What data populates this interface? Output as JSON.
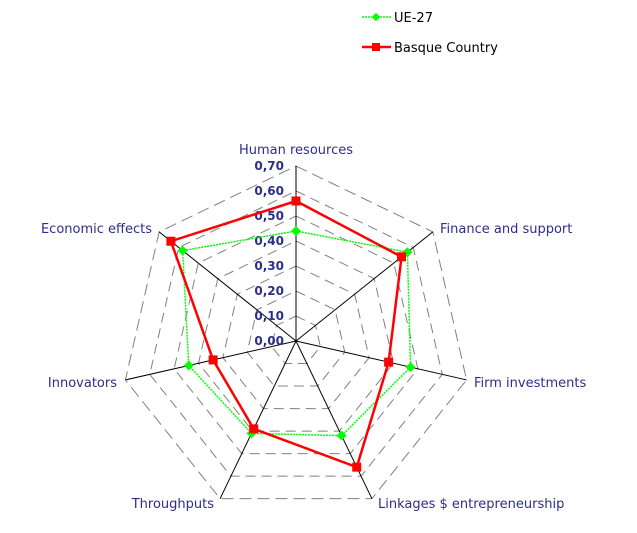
{
  "chart_data": {
    "type": "radar",
    "title": "",
    "categories": [
      "Human resources",
      "Finance and support",
      "Firm investments",
      "Linkages $ entrepreneurship",
      "Throughputs",
      "Innovators",
      "Economic effects"
    ],
    "series": [
      {
        "name": "UE-27",
        "color": "#00ff00",
        "marker": "diamond",
        "values": [
          0.44,
          0.57,
          0.47,
          0.42,
          0.41,
          0.44,
          0.58
        ]
      },
      {
        "name": "Basque Country",
        "color": "#ff0000",
        "marker": "square",
        "values": [
          0.56,
          0.54,
          0.38,
          0.56,
          0.39,
          0.34,
          0.64
        ]
      }
    ],
    "radial_ticks": [
      "0,00",
      "0,10",
      "0,20",
      "0,30",
      "0,40",
      "0,50",
      "0,60",
      "0,70"
    ],
    "rlim": [
      0,
      0.7
    ],
    "grid": "dashed heptagons",
    "legend_position": "top-right"
  },
  "legend": {
    "items": [
      {
        "label": "UE-27",
        "color": "#00ff00"
      },
      {
        "label": "Basque Country",
        "color": "#ff0000"
      }
    ]
  }
}
